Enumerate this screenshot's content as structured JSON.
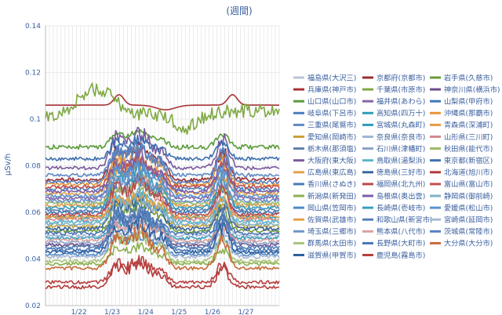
{
  "chart_data": {
    "type": "line",
    "title": "(週間)",
    "ylabel": "μSv/h",
    "ylim": [
      0.02,
      0.14
    ],
    "yticks": [
      "0.02",
      "0.04",
      "0.06",
      "0.08",
      "0.1",
      "0.12",
      "0.14"
    ],
    "xlim": [
      0,
      7
    ],
    "xticks": [
      {
        "x": 1,
        "label": "1/22"
      },
      {
        "x": 2,
        "label": "1/23"
      },
      {
        "x": 3,
        "label": "1/24"
      },
      {
        "x": 4,
        "label": "1/25"
      },
      {
        "x": 5,
        "label": "1/26"
      },
      {
        "x": 6,
        "label": "1/27"
      }
    ],
    "grid": true,
    "legend_position": "right",
    "series": [
      {
        "name": "福島県(大沢三)",
        "color": "#b8c4d6",
        "level": 0.0
      },
      {
        "name": "京都府(京都市)",
        "color": "#9b2b30",
        "level": 0.074
      },
      {
        "name": "岩手県(久慈市)",
        "color": "#6b9a3a",
        "level": 0.052
      },
      {
        "name": "兵庫県(神戸市)",
        "color": "#a83236",
        "level": 0.106,
        "pattern": "flatLowHump",
        "amp": 0.005
      },
      {
        "name": "千葉県(市原市)",
        "color": "#7fa843",
        "level": 0.1,
        "pattern": "riseNoisy",
        "amp": 0.012
      },
      {
        "name": "神奈川県(横浜市)",
        "color": "#6b4d8a",
        "level": 0.046
      },
      {
        "name": "山口県(山口市)",
        "color": "#5a9b3a",
        "level": 0.088,
        "pattern": "hump",
        "amp": 0.006
      },
      {
        "name": "福井県(あわら)",
        "color": "#8766a8",
        "level": 0.066
      },
      {
        "name": "山梨県(甲府市)",
        "color": "#3e78b8",
        "level": 0.06
      },
      {
        "name": "岐阜県(下呂市)",
        "color": "#4a7fc0",
        "level": 0.07
      },
      {
        "name": "高知県(四万十)",
        "color": "#2f9db8",
        "level": 0.049
      },
      {
        "name": "沖縄県(那覇市)",
        "color": "#e8963a",
        "level": 0.072
      },
      {
        "name": "三重県(尾鷲市)",
        "color": "#5d89c6",
        "level": 0.076
      },
      {
        "name": "宮城県(丸森町)",
        "color": "#2e9bb5",
        "level": 0.058
      },
      {
        "name": "青森県(深浦町)",
        "color": "#e59a45",
        "level": 0.063
      },
      {
        "name": "愛知県(岡崎市)",
        "color": "#c8a23a",
        "level": 0.054
      },
      {
        "name": "奈良県(奈良市)",
        "color": "#9fb6d8",
        "level": 0.05
      },
      {
        "name": "山形県(三川町)",
        "color": "#d48a8d",
        "level": 0.057
      },
      {
        "name": "栃木県(那須塩)",
        "color": "#5f7fae",
        "level": 0.061
      },
      {
        "name": "石川県(津幡町)",
        "color": "#8aa1c6",
        "level": 0.047
      },
      {
        "name": "秋田県(能代市)",
        "color": "#9aba6a",
        "level": 0.064
      },
      {
        "name": "大阪府(東大阪)",
        "color": "#7a5a9e",
        "level": 0.079
      },
      {
        "name": "鳥取県(湯梨浜)",
        "color": "#5bb3c8",
        "level": 0.056
      },
      {
        "name": "東京都(新宿区)",
        "color": "#3d6fb0",
        "level": 0.083
      },
      {
        "name": "広島県(東広島)",
        "color": "#e2a24a",
        "level": 0.068
      },
      {
        "name": "徳島県(三好市)",
        "color": "#3c64a0",
        "level": 0.053
      },
      {
        "name": "北海道(旭川市)",
        "color": "#b33a3a",
        "level": 0.028
      },
      {
        "name": "香川県(さぬき)",
        "color": "#4a7bb7",
        "level": 0.044
      },
      {
        "name": "福岡県(北九州)",
        "color": "#b94a4a",
        "level": 0.059
      },
      {
        "name": "富山県(富山市)",
        "color": "#c0504d",
        "level": 0.071
      },
      {
        "name": "新潟県(新発田)",
        "color": "#8cb050",
        "level": 0.038
      },
      {
        "name": "島根県(奥出雲)",
        "color": "#7b5ea8",
        "level": 0.069
      },
      {
        "name": "静岡県(御前崎)",
        "color": "#7fb3c8",
        "level": 0.055
      },
      {
        "name": "岡山県(笠岡市)",
        "color": "#4f8ac8",
        "level": 0.042
      },
      {
        "name": "長崎県(壱岐市)",
        "color": "#3a9fc0",
        "level": 0.062
      },
      {
        "name": "愛媛県(松山市)",
        "color": "#5a93d0",
        "level": 0.067
      },
      {
        "name": "佐賀県(武雄市)",
        "color": "#e4a04a",
        "level": 0.058
      },
      {
        "name": "和歌山県(新宮市)",
        "color": "#5580b8",
        "level": 0.045
      },
      {
        "name": "宮崎県(延岡市)",
        "color": "#a8b8d4",
        "level": 0.041
      },
      {
        "name": "埼玉県(三郷市)",
        "color": "#6e96c8",
        "level": 0.065
      },
      {
        "name": "熊本県(八代市)",
        "color": "#d9a0a0",
        "level": 0.048
      },
      {
        "name": "茨城県(常陸市)",
        "color": "#5880c0",
        "level": 0.073
      },
      {
        "name": "群馬県(太田市)",
        "color": "#a8c47a",
        "level": 0.039
      },
      {
        "name": "長野県(大町市)",
        "color": "#4a75b5",
        "level": 0.051
      },
      {
        "name": "大分県(大分市)",
        "color": "#c86a3a",
        "level": 0.036
      },
      {
        "name": "滋賀県(甲賀市)",
        "color": "#2f5f9f",
        "level": 0.043
      },
      {
        "name": "鹿児島(霧島市)",
        "color": "#b84040",
        "level": 0.03
      }
    ]
  }
}
